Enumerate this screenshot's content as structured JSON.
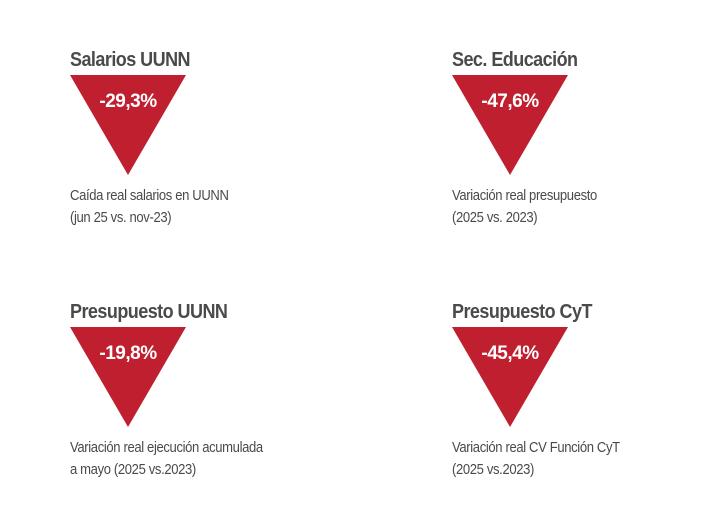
{
  "accent_color": "#c01f2f",
  "cards": [
    {
      "title": "Salarios UUNN",
      "value": "-29,3%",
      "desc_line1": "Caída real salarios en UUNN",
      "desc_line2": "(jun 25 vs. nov-23)"
    },
    {
      "title": "Sec. Educación",
      "value": "-47,6%",
      "desc_line1": "Variación real presupuesto",
      "desc_line2": "(2025 vs. 2023)"
    },
    {
      "title": "Presupuesto UUNN",
      "value": "-19,8%",
      "desc_line1": "Variación real ejecución acumulada",
      "desc_line2": "a mayo (2025 vs.2023)"
    },
    {
      "title": "Presupuesto CyT",
      "value": "-45,4%",
      "desc_line1": "Variación real CV Función CyT",
      "desc_line2": "(2025 vs.2023)"
    }
  ]
}
